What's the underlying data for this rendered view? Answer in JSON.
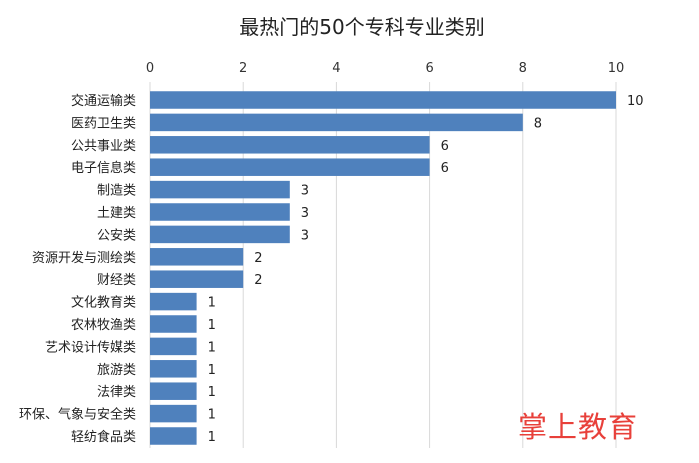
{
  "chart_data": {
    "type": "bar",
    "orientation": "horizontal",
    "title": "最热门的50个专科专业类别",
    "categories": [
      "交通运输类",
      "医药卫生类",
      "公共事业类",
      "电子信息类",
      "制造类",
      "土建类",
      "公安类",
      "资源开发与测绘类",
      "财经类",
      "文化教育类",
      "农林牧渔类",
      "艺术设计传媒类",
      "旅游类",
      "法律类",
      "环保、气象与安全类",
      "轻纺食品类"
    ],
    "values": [
      10,
      8,
      6,
      6,
      3,
      3,
      3,
      2,
      2,
      1,
      1,
      1,
      1,
      1,
      1,
      1
    ],
    "xlim": [
      0,
      10
    ],
    "xticks": [
      0,
      2,
      4,
      6,
      8,
      10
    ],
    "x_axis_position": "top",
    "grid": true,
    "data_labels": true,
    "bar_color": "#4f81bd"
  },
  "watermark": {
    "text": "掌上教育",
    "color": "#e8403a"
  }
}
